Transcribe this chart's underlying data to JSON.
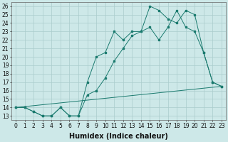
{
  "xlabel": "Humidex (Indice chaleur)",
  "bg_color": "#cde8e8",
  "grid_color": "#aacccc",
  "line_color": "#1a7a6e",
  "xlim": [
    -0.5,
    23.5
  ],
  "ylim": [
    12.5,
    26.5
  ],
  "xticks": [
    0,
    1,
    2,
    3,
    4,
    5,
    6,
    7,
    8,
    9,
    10,
    11,
    12,
    13,
    14,
    15,
    16,
    17,
    18,
    19,
    20,
    21,
    22,
    23
  ],
  "yticks": [
    13,
    14,
    15,
    16,
    17,
    18,
    19,
    20,
    21,
    22,
    23,
    24,
    25,
    26
  ],
  "line1_x": [
    0,
    1,
    2,
    3,
    4,
    5,
    6,
    7,
    8,
    9,
    10,
    11,
    12,
    13,
    14,
    15,
    16,
    17,
    18,
    19,
    20,
    21,
    22,
    23
  ],
  "line1_y": [
    14,
    14,
    13.5,
    13,
    13,
    14,
    13,
    13,
    17,
    20,
    20.5,
    23,
    22,
    23,
    23,
    26,
    25.5,
    24.5,
    24,
    25.5,
    25,
    20.5,
    17,
    16.5
  ],
  "line2_x": [
    0,
    1,
    2,
    3,
    4,
    5,
    6,
    7,
    8,
    9,
    10,
    11,
    12,
    13,
    14,
    15,
    16,
    17,
    18,
    19,
    20,
    21,
    22,
    23
  ],
  "line2_y": [
    14,
    14,
    13.5,
    13,
    13,
    14,
    13,
    13,
    15.5,
    16,
    17.5,
    19.5,
    21,
    22.5,
    23,
    23.5,
    22,
    23.5,
    25.5,
    23.5,
    23,
    20.5,
    17,
    16.5
  ],
  "line3_x": [
    0,
    23
  ],
  "line3_y": [
    14,
    16.5
  ],
  "font_size": 5.5,
  "lw": 0.7,
  "ms": 1.5
}
